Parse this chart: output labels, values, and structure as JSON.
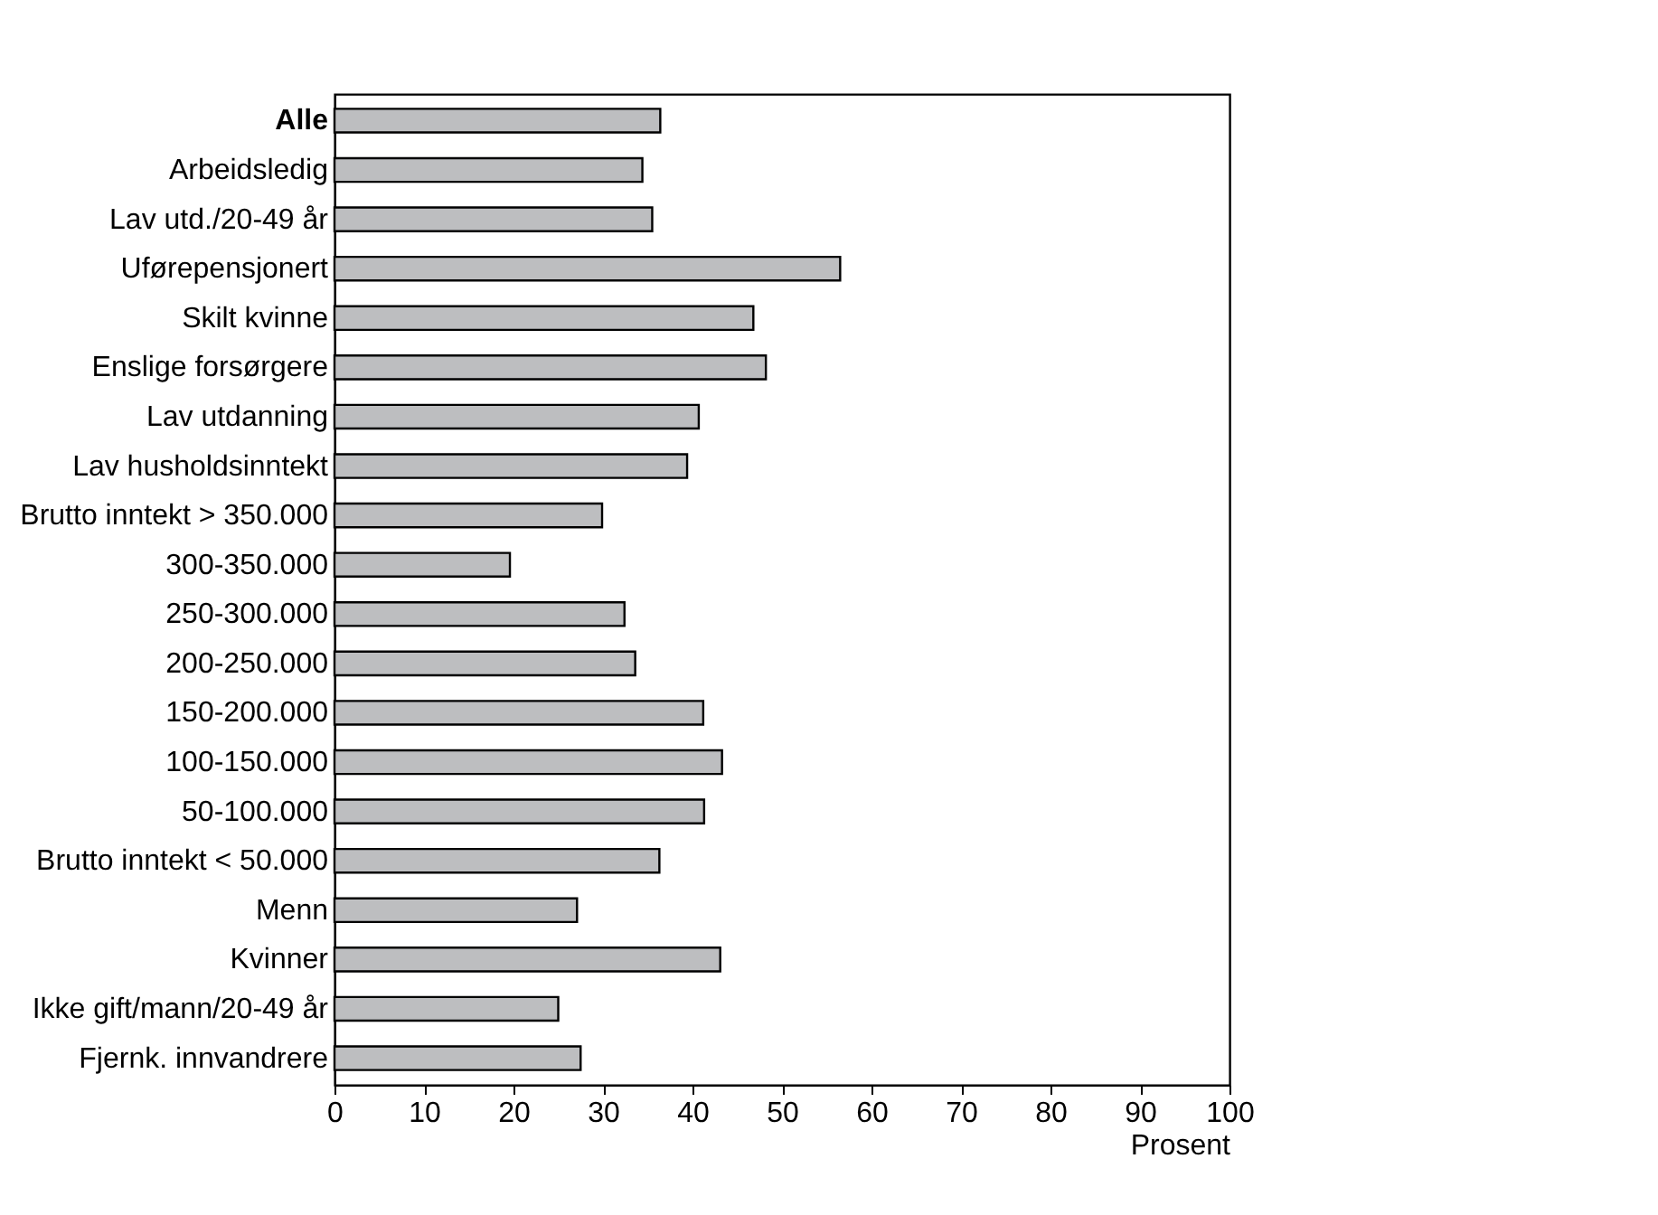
{
  "chart_data": {
    "type": "bar",
    "orientation": "horizontal",
    "xlabel": "Prosent",
    "categories": [
      "Alle",
      "Arbeidsledig",
      "Lav utd./20-49 år",
      "Uførepensjonert",
      "Skilt kvinne",
      "Enslige forsørgere",
      "Lav utdanning",
      "Lav husholdsinntekt",
      "Brutto inntekt > 350.000",
      "300-350.000",
      "250-300.000",
      "200-250.000",
      "150-200.000",
      "100-150.000",
      "50-100.000",
      "Brutto inntekt < 50.000",
      "Menn",
      "Kvinner",
      "Ikke gift/mann/20-49 år",
      "Fjernk. innvandrere"
    ],
    "values": [
      36.4,
      34.4,
      35.5,
      56.5,
      46.8,
      48.2,
      40.7,
      39.4,
      29.9,
      19.6,
      32.4,
      33.6,
      41.2,
      43.3,
      41.3,
      36.3,
      27.1,
      43.1,
      25.0,
      27.5
    ],
    "color": "#bdbec0",
    "xlim": [
      0,
      100
    ],
    "xticks": [
      0,
      10,
      20,
      30,
      40,
      50,
      60,
      70,
      80,
      90,
      100
    ],
    "grid": false
  }
}
